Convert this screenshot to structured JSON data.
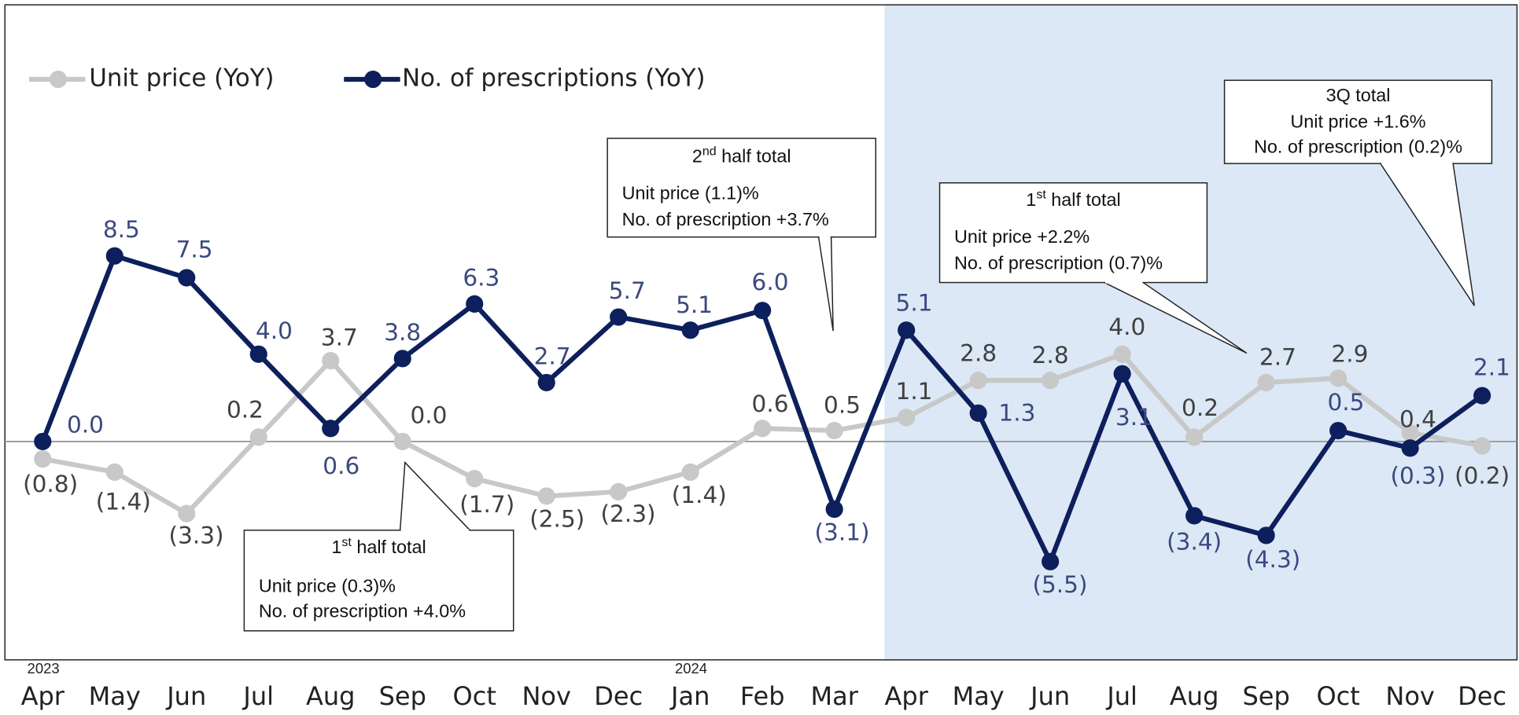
{
  "chart_data": {
    "type": "line",
    "categories": [
      "Apr",
      "May",
      "Jun",
      "Jul",
      "Aug",
      "Sep",
      "Oct",
      "Nov",
      "Dec",
      "Jan",
      "Feb",
      "Mar",
      "Apr",
      "May",
      "Jun",
      "Jul",
      "Aug",
      "Sep",
      "Oct",
      "Nov",
      "Dec"
    ],
    "category_years": [
      "2023",
      null,
      null,
      null,
      null,
      null,
      null,
      null,
      null,
      "2024",
      null,
      null,
      null,
      null,
      null,
      null,
      null,
      null,
      null,
      null,
      null
    ],
    "ylim": [
      -10,
      20
    ],
    "zero_line": true,
    "legend": "top-left",
    "series": [
      {
        "name": "Unit price (YoY)",
        "color": "#c8c8c8",
        "label_color": "#404040",
        "values": [
          -0.8,
          -1.4,
          -3.3,
          0.2,
          3.7,
          0.0,
          -1.7,
          -2.5,
          -2.3,
          -1.4,
          0.6,
          0.5,
          1.1,
          2.8,
          2.8,
          4.0,
          0.2,
          2.7,
          2.9,
          0.4,
          -0.2
        ],
        "value_labels": [
          "(0.8)",
          "(1.4)",
          "(3.3)",
          "0.2",
          "3.7",
          "0.0",
          "(1.7)",
          "(2.5)",
          "(2.3)",
          "(1.4)",
          "0.6",
          "0.5",
          "1.1",
          "2.8",
          "2.8",
          "4.0",
          "0.2",
          "2.7",
          "2.9",
          "0.4",
          "(0.2)"
        ]
      },
      {
        "name": "No. of prescriptions (YoY)",
        "color": "#0d1f5c",
        "label_color": "#3a4a80",
        "values": [
          0.0,
          8.5,
          7.5,
          4.0,
          0.6,
          3.8,
          6.3,
          2.7,
          5.7,
          5.1,
          6.0,
          -3.1,
          5.1,
          1.3,
          -5.5,
          3.1,
          -3.4,
          -4.3,
          0.5,
          -0.3,
          2.1
        ],
        "value_labels": [
          "0.0",
          "8.5",
          "7.5",
          "4.0",
          "0.6",
          "3.8",
          "6.3",
          "2.7",
          "5.7",
          "5.1",
          "6.0",
          "(3.1)",
          "5.1",
          "1.3",
          "(5.5)",
          "3.1",
          "(3.4)",
          "(4.3)",
          "0.5",
          "(0.3)",
          "2.1"
        ]
      }
    ],
    "annotations": [
      {
        "title": [
          "1",
          "st",
          " half total"
        ],
        "lines": [
          "Unit price (0.3)%",
          "No. of prescription +4.0%"
        ]
      },
      {
        "title": [
          "2",
          "nd",
          " half total"
        ],
        "lines": [
          "Unit price (1.1)%",
          "No. of prescription +3.7%"
        ]
      },
      {
        "title": [
          "1",
          "st",
          " half total"
        ],
        "lines": [
          "Unit price +2.2%",
          "No. of prescription (0.7)%"
        ]
      },
      {
        "title": [
          "3Q total"
        ],
        "lines": [
          "Unit price +1.6%",
          "No. of prescription (0.2)%"
        ]
      }
    ]
  }
}
